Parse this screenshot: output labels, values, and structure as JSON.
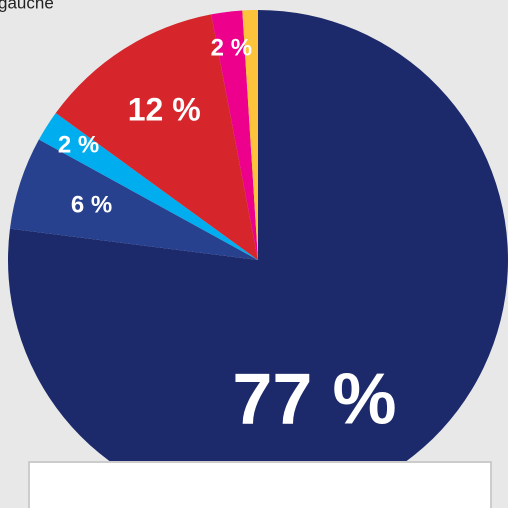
{
  "chart_data": {
    "type": "pie",
    "annotation": "gauche",
    "categories": [
      null,
      null,
      null,
      null,
      null,
      null
    ],
    "values": [
      77,
      6,
      2,
      12,
      2,
      1
    ],
    "value_labels": [
      "77 %",
      "6 %",
      "2 %",
      "12 %",
      "2 %",
      null
    ],
    "colors": [
      "#1c2a6b",
      "#27418f",
      "#00aeef",
      "#d6252b",
      "#ec008c",
      "#fdc33b"
    ]
  }
}
